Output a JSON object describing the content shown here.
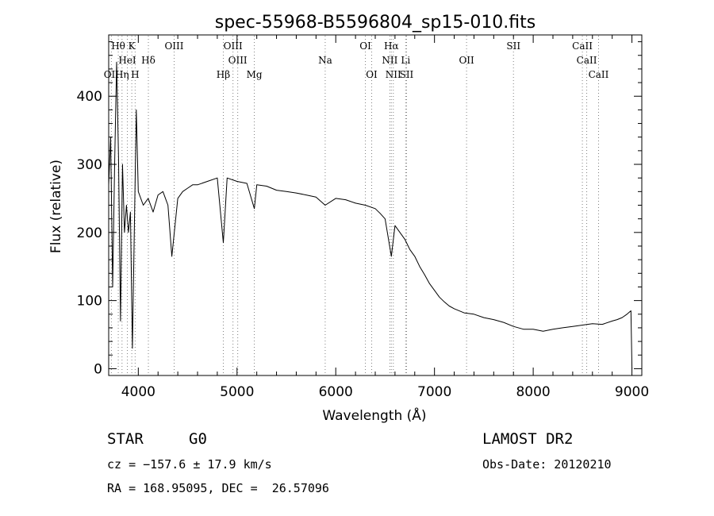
{
  "chart_data": {
    "type": "line",
    "title": "spec-55968-B5596804_sp15-010.fits",
    "xlabel": "Wavelength (Å)",
    "ylabel": "Flux (relative)",
    "xlim": [
      3700,
      9100
    ],
    "ylim": [
      -10,
      490
    ],
    "xticks": [
      4000,
      5000,
      6000,
      7000,
      8000,
      9000
    ],
    "yticks": [
      0,
      100,
      200,
      300,
      400
    ],
    "grid": false,
    "line_color": "#000000",
    "marker_line_color": "#808080",
    "series": [
      {
        "x": [
          3700,
          3720,
          3740,
          3760,
          3780,
          3800,
          3820,
          3840,
          3860,
          3880,
          3900,
          3920,
          3940,
          3960,
          3980,
          4000,
          4050,
          4100,
          4150,
          4200,
          4250,
          4300,
          4340,
          4400,
          4450,
          4500,
          4550,
          4600,
          4700,
          4800,
          4861,
          4900,
          5000,
          5100,
          5175,
          5200,
          5300,
          5400,
          5500,
          5600,
          5700,
          5800,
          5893,
          6000,
          6100,
          6200,
          6300,
          6400,
          6450,
          6500,
          6563,
          6600,
          6650,
          6700,
          6750,
          6800,
          6850,
          6900,
          6950,
          7000,
          7050,
          7100,
          7150,
          7200,
          7300,
          7400,
          7500,
          7600,
          7700,
          7800,
          7900,
          8000,
          8100,
          8200,
          8300,
          8400,
          8500,
          8600,
          8700,
          8800,
          8850,
          8900,
          8950,
          8990,
          9000
        ],
        "y": [
          270,
          340,
          120,
          300,
          450,
          310,
          70,
          300,
          200,
          240,
          200,
          230,
          30,
          210,
          380,
          260,
          240,
          250,
          230,
          255,
          260,
          240,
          165,
          250,
          260,
          265,
          270,
          270,
          275,
          280,
          185,
          280,
          275,
          272,
          235,
          270,
          268,
          262,
          260,
          258,
          255,
          252,
          240,
          250,
          248,
          243,
          240,
          235,
          228,
          220,
          165,
          210,
          200,
          190,
          175,
          165,
          150,
          138,
          125,
          115,
          105,
          98,
          92,
          88,
          82,
          80,
          75,
          72,
          68,
          62,
          58,
          58,
          55,
          58,
          60,
          62,
          64,
          66,
          65,
          70,
          72,
          75,
          80,
          85,
          0
        ]
      }
    ],
    "spectral_lines": [
      {
        "label": "Hθ",
        "x": 3797,
        "row": 1
      },
      {
        "label": "K",
        "x": 3934,
        "row": 1
      },
      {
        "label": "HeI",
        "x": 3889,
        "row": 2
      },
      {
        "label": "Hδ",
        "x": 4102,
        "row": 2
      },
      {
        "label": "OII",
        "x": 3727,
        "row": 3
      },
      {
        "label": "Hη",
        "x": 3835,
        "row": 3
      },
      {
        "label": "H",
        "x": 3968,
        "row": 3
      },
      {
        "label": "OIII",
        "x": 4363,
        "row": 1
      },
      {
        "label": "OIII",
        "x": 4959,
        "row": 1
      },
      {
        "label": "OIII",
        "x": 5007,
        "row": 2
      },
      {
        "label": "Hβ",
        "x": 4861,
        "row": 3
      },
      {
        "label": "Mg",
        "x": 5175,
        "row": 3
      },
      {
        "label": "Na",
        "x": 5893,
        "row": 2
      },
      {
        "label": "OI",
        "x": 6300,
        "row": 1
      },
      {
        "label": "OI",
        "x": 6364,
        "row": 3
      },
      {
        "label": "Hα",
        "x": 6563,
        "row": 1
      },
      {
        "label": "NII",
        "x": 6548,
        "row": 2
      },
      {
        "label": "Li",
        "x": 6708,
        "row": 2
      },
      {
        "label": "NII",
        "x": 6583,
        "row": 3
      },
      {
        "label": "SII",
        "x": 6717,
        "row": 3
      },
      {
        "label": "OII",
        "x": 7325,
        "row": 2
      },
      {
        "label": "SII",
        "x": 7800,
        "row": 1
      },
      {
        "label": "CaII",
        "x": 8498,
        "row": 1
      },
      {
        "label": "CaII",
        "x": 8542,
        "row": 2
      },
      {
        "label": "CaII",
        "x": 8662,
        "row": 3
      }
    ]
  },
  "info": {
    "class": "STAR",
    "subclass": "G0",
    "survey": "LAMOST DR2",
    "redshift": "cz = −157.6 ± 17.9 km/s",
    "obsdate": "Obs-Date: 20120210",
    "coords": "RA = 168.95095, DEC =  26.57096"
  }
}
